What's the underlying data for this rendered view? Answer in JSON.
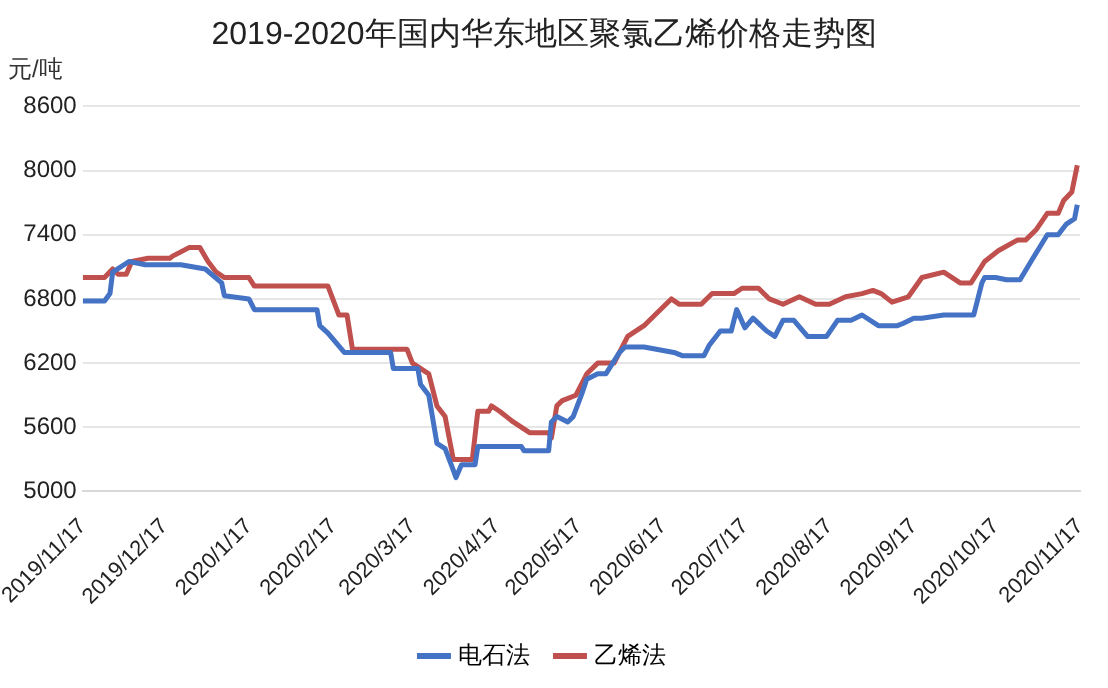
{
  "chart_data": {
    "type": "line",
    "title": "2019-2020年国内华东地区聚氯乙烯价格走势图",
    "ylabel": "元/吨",
    "xlim": [
      "2019-11-17",
      "2020-11-17"
    ],
    "xticks": [
      {
        "value": "2019-11-17",
        "label": "2019/11/17"
      },
      {
        "value": "2019-12-17",
        "label": "2019/12/17"
      },
      {
        "value": "2020-01-17",
        "label": "2020/1/17"
      },
      {
        "value": "2020-02-17",
        "label": "2020/2/17"
      },
      {
        "value": "2020-03-17",
        "label": "2020/3/17"
      },
      {
        "value": "2020-04-17",
        "label": "2020/4/17"
      },
      {
        "value": "2020-05-17",
        "label": "2020/5/17"
      },
      {
        "value": "2020-06-17",
        "label": "2020/6/17"
      },
      {
        "value": "2020-07-17",
        "label": "2020/7/17"
      },
      {
        "value": "2020-08-17",
        "label": "2020/8/17"
      },
      {
        "value": "2020-09-17",
        "label": "2020/9/17"
      },
      {
        "value": "2020-10-17",
        "label": "2020/10/17"
      },
      {
        "value": "2020-11-17",
        "label": "2020/11/17"
      }
    ],
    "ylim": [
      5000,
      8600
    ],
    "yticks": [
      5000,
      5600,
      6200,
      6800,
      7400,
      8000,
      8600
    ],
    "grid": "y",
    "legend": "bottom",
    "marker": "none",
    "line_style": "solid",
    "series": [
      {
        "name": "电石法",
        "color": "#4472c4",
        "x": [
          "2019-11-17",
          "2019-11-25",
          "2019-11-27",
          "2019-11-28",
          "2019-12-04",
          "2019-12-10",
          "2019-12-23",
          "2020-01-01",
          "2020-01-07",
          "2020-01-08",
          "2020-01-17",
          "2020-01-19",
          "2020-02-11",
          "2020-02-12",
          "2020-02-15",
          "2020-02-21",
          "2020-03-09",
          "2020-03-10",
          "2020-03-19",
          "2020-03-20",
          "2020-03-23",
          "2020-03-26",
          "2020-03-29",
          "2020-04-01",
          "2020-04-02",
          "2020-04-04",
          "2020-04-09",
          "2020-04-10",
          "2020-04-26",
          "2020-04-27",
          "2020-05-06",
          "2020-05-07",
          "2020-05-09",
          "2020-05-13",
          "2020-05-15",
          "2020-05-18",
          "2020-05-20",
          "2020-05-24",
          "2020-05-27",
          "2020-06-01",
          "2020-06-03",
          "2020-06-10",
          "2020-06-21",
          "2020-06-24",
          "2020-07-02",
          "2020-07-04",
          "2020-07-08",
          "2020-07-12",
          "2020-07-14",
          "2020-07-17",
          "2020-07-20",
          "2020-07-25",
          "2020-07-28",
          "2020-07-31",
          "2020-08-04",
          "2020-08-09",
          "2020-08-16",
          "2020-08-20",
          "2020-08-25",
          "2020-08-29",
          "2020-09-04",
          "2020-09-11",
          "2020-09-13",
          "2020-09-17",
          "2020-09-20",
          "2020-09-28",
          "2020-10-09",
          "2020-10-12",
          "2020-10-13",
          "2020-10-17",
          "2020-10-21",
          "2020-10-26",
          "2020-10-30",
          "2020-11-05",
          "2020-11-09",
          "2020-11-12",
          "2020-11-15",
          "2020-11-16"
        ],
        "values": [
          6780,
          6780,
          6850,
          7050,
          7150,
          7120,
          7120,
          7080,
          6950,
          6830,
          6800,
          6700,
          6700,
          6550,
          6480,
          6300,
          6300,
          6150,
          6150,
          6000,
          5900,
          5450,
          5400,
          5200,
          5130,
          5250,
          5250,
          5420,
          5420,
          5380,
          5380,
          5650,
          5700,
          5650,
          5700,
          5900,
          6050,
          6100,
          6100,
          6300,
          6350,
          6350,
          6300,
          6270,
          6270,
          6370,
          6500,
          6500,
          6700,
          6530,
          6620,
          6500,
          6450,
          6600,
          6600,
          6450,
          6450,
          6600,
          6600,
          6650,
          6550,
          6550,
          6570,
          6620,
          6620,
          6650,
          6650,
          6950,
          7000,
          7000,
          6980,
          6980,
          7150,
          7400,
          7400,
          7500,
          7550,
          7680
        ]
      },
      {
        "name": "乙烯法",
        "color": "#c0504d",
        "x": [
          "2019-11-17",
          "2019-11-25",
          "2019-11-28",
          "2019-11-30",
          "2019-12-03",
          "2019-12-05",
          "2019-12-11",
          "2019-12-19",
          "2019-12-20",
          "2019-12-26",
          "2019-12-30",
          "2020-01-02",
          "2020-01-05",
          "2020-01-08",
          "2020-01-17",
          "2020-01-19",
          "2020-02-15",
          "2020-02-19",
          "2020-02-22",
          "2020-02-24",
          "2020-03-15",
          "2020-03-17",
          "2020-03-23",
          "2020-03-26",
          "2020-03-29",
          "2020-04-01",
          "2020-04-08",
          "2020-04-10",
          "2020-04-14",
          "2020-04-15",
          "2020-04-18",
          "2020-04-23",
          "2020-04-29",
          "2020-05-06",
          "2020-05-07",
          "2020-05-09",
          "2020-05-11",
          "2020-05-16",
          "2020-05-20",
          "2020-05-24",
          "2020-05-30",
          "2020-06-01",
          "2020-06-04",
          "2020-06-10",
          "2020-06-14",
          "2020-06-20",
          "2020-06-23",
          "2020-07-01",
          "2020-07-05",
          "2020-07-13",
          "2020-07-16",
          "2020-07-22",
          "2020-07-26",
          "2020-07-31",
          "2020-08-06",
          "2020-08-12",
          "2020-08-17",
          "2020-08-23",
          "2020-08-29",
          "2020-09-02",
          "2020-09-05",
          "2020-09-09",
          "2020-09-15",
          "2020-09-20",
          "2020-09-28",
          "2020-10-04",
          "2020-10-08",
          "2020-10-13",
          "2020-10-18",
          "2020-10-25",
          "2020-10-28",
          "2020-11-01",
          "2020-11-05",
          "2020-11-09",
          "2020-11-11",
          "2020-11-14",
          "2020-11-16"
        ],
        "values": [
          7000,
          7000,
          7080,
          7030,
          7030,
          7150,
          7180,
          7180,
          7200,
          7280,
          7280,
          7150,
          7050,
          7000,
          7000,
          6920,
          6920,
          6650,
          6650,
          6330,
          6330,
          6200,
          6100,
          5800,
          5700,
          5300,
          5300,
          5750,
          5750,
          5800,
          5750,
          5650,
          5550,
          5550,
          5500,
          5800,
          5850,
          5900,
          6100,
          6200,
          6200,
          6300,
          6450,
          6550,
          6650,
          6800,
          6750,
          6750,
          6850,
          6850,
          6900,
          6900,
          6800,
          6750,
          6820,
          6750,
          6750,
          6820,
          6850,
          6880,
          6850,
          6770,
          6820,
          7000,
          7050,
          6950,
          6950,
          7150,
          7250,
          7350,
          7350,
          7450,
          7600,
          7600,
          7720,
          7800,
          8050
        ]
      }
    ]
  }
}
